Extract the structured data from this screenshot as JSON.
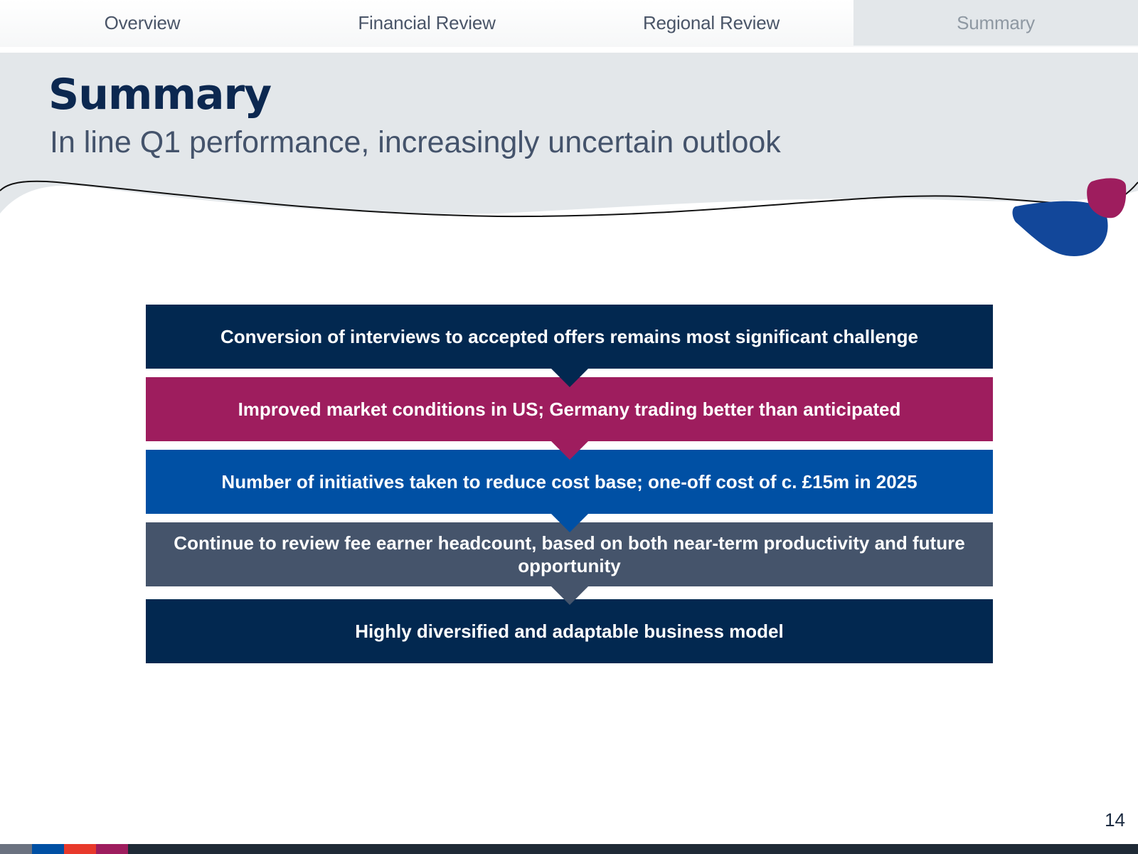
{
  "nav": {
    "tabs": [
      {
        "label": "Overview",
        "active": false
      },
      {
        "label": "Financial Review",
        "active": false
      },
      {
        "label": "Regional Review",
        "active": false
      },
      {
        "label": "Summary",
        "active": true
      }
    ]
  },
  "header": {
    "title": "Summary",
    "subtitle": "In line Q1 performance, increasingly uncertain outlook"
  },
  "steps": [
    {
      "text": "Conversion of interviews to accepted offers remains most significant challenge",
      "color": "#022850"
    },
    {
      "text": "Improved market conditions in US; Germany trading better than anticipated",
      "color": "#9e1d5e"
    },
    {
      "text": "Number of initiatives taken to reduce cost base; one-off cost of c. £15m in 2025",
      "color": "#0050a4"
    },
    {
      "text": "Continue to review fee earner headcount, based on both near-term productivity and future opportunity",
      "color": "#45546b"
    },
    {
      "text": "Highly diversified and adaptable business model",
      "color": "#022850"
    }
  ],
  "footer": {
    "page_number": "14",
    "brand_strip_colors": [
      "#6b7280",
      "#0050a4",
      "#e8392b",
      "#9e1d5e"
    ]
  },
  "colors": {
    "header_band": "#e3e7ea",
    "blob_magenta": "#9e1d5e",
    "blob_blue": "#12479a",
    "title": "#0c2850"
  }
}
